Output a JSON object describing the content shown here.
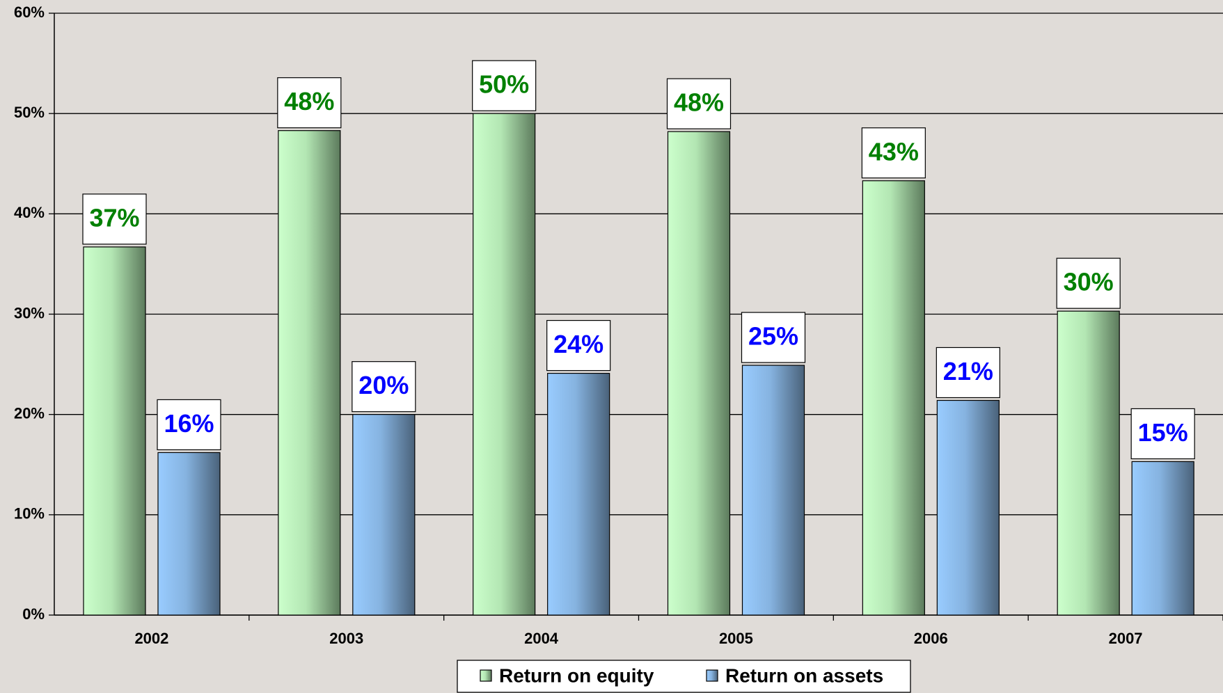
{
  "chart_data": {
    "type": "bar",
    "categories": [
      "2002",
      "2003",
      "2004",
      "2005",
      "2006",
      "2007"
    ],
    "series": [
      {
        "name": "Return on equity",
        "color": "#008000",
        "values": [
          36.7,
          48.3,
          50,
          48.2,
          43.3,
          30.3
        ],
        "value_labels": [
          "37%",
          "48%",
          "50%",
          "48%",
          "43%",
          "30%"
        ]
      },
      {
        "name": "Return on assets",
        "color": "#0000ff",
        "values": [
          16.2,
          20,
          24.1,
          24.9,
          21.4,
          15.3
        ],
        "value_labels": [
          "16%",
          "20%",
          "24%",
          "25%",
          "21%",
          "15%"
        ]
      }
    ],
    "ylim": [
      0,
      60
    ],
    "yticks": [
      {
        "value": 0,
        "label": "0%"
      },
      {
        "value": 10,
        "label": "10%"
      },
      {
        "value": 20,
        "label": "20%"
      },
      {
        "value": 30,
        "label": "30%"
      },
      {
        "value": 40,
        "label": "40%"
      },
      {
        "value": 50,
        "label": "50%"
      },
      {
        "value": 60,
        "label": "60%"
      }
    ],
    "grid": true,
    "legend": "bottom"
  }
}
